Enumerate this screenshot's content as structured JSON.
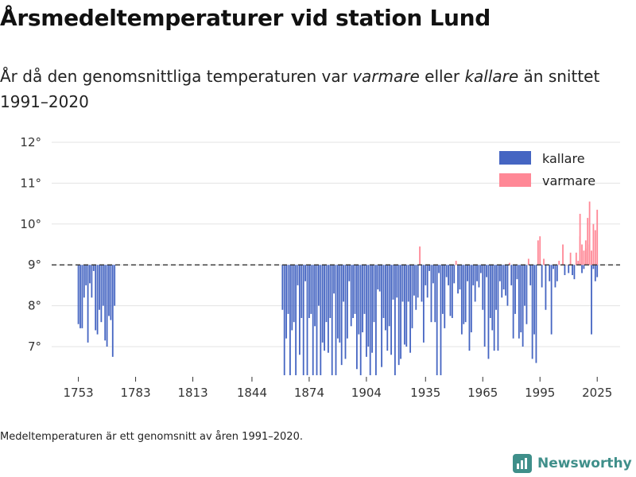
{
  "header": {
    "title": "Årsmedeltemperaturer vid station Lund",
    "subtitle_part1": "År då den genomsnittliga temperaturen var ",
    "subtitle_warm": "varmare",
    "subtitle_part2": " eller ",
    "subtitle_cold": "kallare",
    "subtitle_part3": " än snittet 1991–2020"
  },
  "footer": {
    "note": "Medeltemperaturen är ett genomsnitt av åren 1991–2020.",
    "brand": "Newsworthy"
  },
  "colors": {
    "colder": "#4565c2",
    "warmer": "#ff8896",
    "baseline": "#333333",
    "brand": "#3f8f8a"
  },
  "chart_data": {
    "type": "bar",
    "title": "Årsmedeltemperaturer vid station Lund",
    "xlabel": "",
    "ylabel": "",
    "baseline": 9.0,
    "ylim": [
      6.3,
      12.0
    ],
    "xlim": [
      1739,
      2037
    ],
    "yticks": [
      7,
      8,
      9,
      10,
      11,
      12
    ],
    "ytick_labels": [
      "7°",
      "8°",
      "9°",
      "10°",
      "11°",
      "12°"
    ],
    "xticks": [
      1753,
      1783,
      1813,
      1844,
      1874,
      1904,
      1935,
      1965,
      1995,
      2025
    ],
    "xtick_labels": [
      "1753",
      "1783",
      "1813",
      "1844",
      "1874",
      "1904",
      "1935",
      "1965",
      "1995",
      "2025"
    ],
    "legend": {
      "position": "top-right",
      "entries": [
        {
          "label": "kallare",
          "key": "colder"
        },
        {
          "label": "varmare",
          "key": "warmer"
        }
      ]
    },
    "gap_start": 1773,
    "gap_end": 1859,
    "series": [
      {
        "name": "1753–1772",
        "start_year": 1753,
        "values": [
          7.55,
          7.45,
          7.45,
          8.2,
          8.5,
          7.1,
          8.55,
          8.2,
          8.85,
          7.4,
          7.3,
          7.9,
          7.6,
          8.0,
          7.15,
          7.0,
          7.75,
          7.65,
          6.75,
          8.0
        ]
      },
      {
        "name": "1860–2025",
        "start_year": 1860,
        "values": [
          7.9,
          6.3,
          7.2,
          7.8,
          6.3,
          7.4,
          7.6,
          6.3,
          8.5,
          6.8,
          7.7,
          6.3,
          8.6,
          6.3,
          7.7,
          7.8,
          6.3,
          7.5,
          6.3,
          8.0,
          6.3,
          7.1,
          6.9,
          7.6,
          6.85,
          7.7,
          6.3,
          8.3,
          6.3,
          7.2,
          7.1,
          6.55,
          8.1,
          6.7,
          7.2,
          8.6,
          7.5,
          7.7,
          7.8,
          6.45,
          7.3,
          6.3,
          7.35,
          7.8,
          6.75,
          7.0,
          6.3,
          6.85,
          7.6,
          6.3,
          8.4,
          8.35,
          6.5,
          7.7,
          7.4,
          6.9,
          7.5,
          6.8,
          8.15,
          6.3,
          8.2,
          6.55,
          6.7,
          8.1,
          7.05,
          7.0,
          8.1,
          6.85,
          7.45,
          8.25,
          7.9,
          8.2,
          9.45,
          8.1,
          7.1,
          8.5,
          8.2,
          8.85,
          7.6,
          8.55,
          7.6,
          6.3,
          8.8,
          6.3,
          7.8,
          7.45,
          8.7,
          8.5,
          7.75,
          7.7,
          8.55,
          9.1,
          8.3,
          8.4,
          7.3,
          7.55,
          7.6,
          8.6,
          6.9,
          7.35,
          8.5,
          8.1,
          8.6,
          8.45,
          8.8,
          7.9,
          7.0,
          8.7,
          6.7,
          7.7,
          7.4,
          6.9,
          7.9,
          6.9,
          8.6,
          8.2,
          8.4,
          8.25,
          8.0,
          9.05,
          8.5,
          7.2,
          7.8,
          8.65,
          7.2,
          7.35,
          7.0,
          8.0,
          7.55,
          9.15,
          8.5,
          6.7,
          7.3,
          6.6,
          9.6,
          9.7,
          8.45,
          9.15,
          7.9,
          9.0,
          8.6,
          7.3,
          8.9,
          8.45,
          8.6,
          9.1,
          9.0,
          9.5,
          8.75,
          9.0,
          8.8,
          9.3,
          8.75,
          8.65,
          9.3,
          9.1,
          9.7,
          8.8,
          8.9,
          9.6,
          9.0,
          9.5,
          7.3,
          8.9,
          8.6,
          8.7
        ]
      }
    ],
    "recent_warm": {
      "name": "2016–2025",
      "start_year": 2016,
      "values": [
        10.25,
        9.5,
        9.35,
        9.4,
        10.15,
        10.55,
        9.35,
        10.0,
        9.85,
        10.35
      ]
    }
  }
}
